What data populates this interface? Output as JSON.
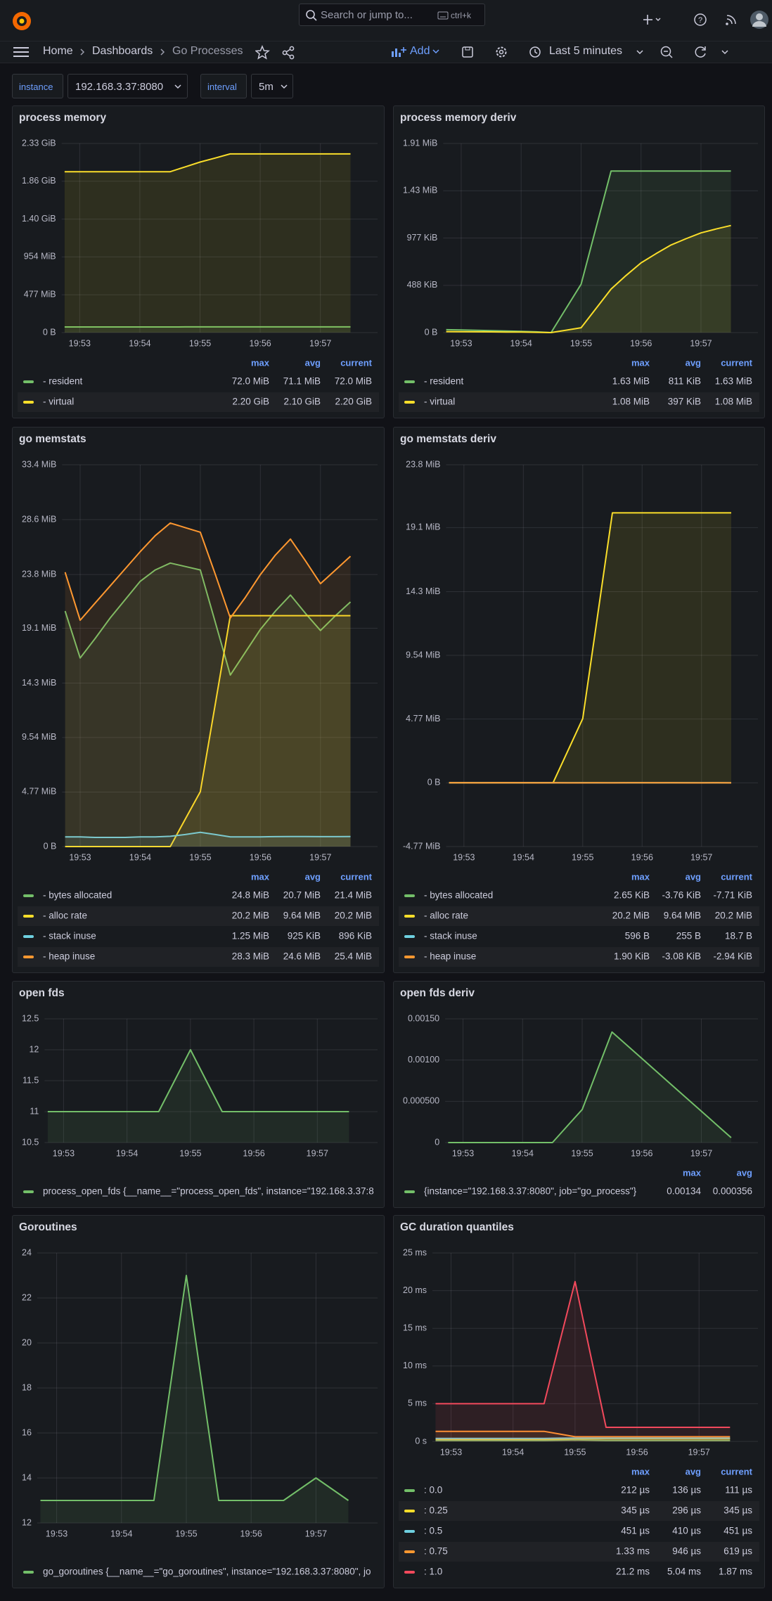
{
  "topbar": {
    "search_placeholder": "Search or jump to...",
    "shortcut": "ctrl+k"
  },
  "navbar": {
    "breadcrumbs": [
      "Home",
      "Dashboards",
      "Go Processes"
    ],
    "add": "Add",
    "time_range": "Last 5 minutes"
  },
  "variables": [
    {
      "label": "instance",
      "value": "192.168.3.37:8080"
    },
    {
      "label": "interval",
      "value": "5m"
    }
  ],
  "panels": [
    {
      "type": "line",
      "title": "process memory",
      "categories": [
        null,
        "19:53",
        null,
        null,
        null,
        "19:54",
        null,
        null,
        null,
        "19:55",
        null,
        null,
        null,
        "19:56",
        null,
        null,
        null,
        "19:57",
        null,
        null
      ],
      "ylim": [
        0,
        2385
      ],
      "yticks": [
        {
          "value": 0,
          "label": "0 B"
        },
        {
          "value": 477,
          "label": "477 MiB"
        },
        {
          "value": 954,
          "label": "954 MiB"
        },
        {
          "value": 1431,
          "label": "1.40 GiB"
        },
        {
          "value": 1908,
          "label": "1.86 GiB"
        },
        {
          "value": 2385,
          "label": "2.33 GiB"
        }
      ],
      "legend_columns": [
        "max",
        "avg",
        "current"
      ],
      "series": [
        {
          "name": "- resident",
          "color": "#73bf69",
          "values": [
            71,
            71,
            71,
            71,
            71,
            71,
            71,
            71,
            72,
            72,
            72,
            72,
            72,
            72,
            72,
            72,
            72,
            72,
            72,
            72
          ],
          "stats": [
            "72.0 MiB",
            "71.1 MiB",
            "72.0 MiB"
          ]
        },
        {
          "name": "- virtual",
          "color": "#fade2a",
          "values": [
            2028,
            2028,
            2028,
            2028,
            2028,
            2028,
            2028,
            2028,
            2089,
            2150,
            2201,
            2253,
            2253,
            2253,
            2253,
            2253,
            2253,
            2253,
            2253,
            2253
          ],
          "stats": [
            "2.20 GiB",
            "2.10 GiB",
            "2.20 GiB"
          ]
        }
      ]
    },
    {
      "type": "line",
      "title": "process memory deriv",
      "categories": [
        null,
        "19:53",
        null,
        null,
        null,
        "19:54",
        null,
        null,
        null,
        "19:55",
        null,
        null,
        null,
        "19:56",
        null,
        null,
        null,
        "19:57",
        null,
        null
      ],
      "ylim": [
        0,
        1954
      ],
      "yticks": [
        {
          "value": 0,
          "label": "0 B"
        },
        {
          "value": 488,
          "label": "488 KiB"
        },
        {
          "value": 977,
          "label": "977 KiB"
        },
        {
          "value": 1465,
          "label": "1.43 MiB"
        },
        {
          "value": 1954,
          "label": "1.91 MiB"
        }
      ],
      "legend_columns": [
        "max",
        "avg",
        "current"
      ],
      "series": [
        {
          "name": "- resident",
          "color": "#73bf69",
          "values": [
            30,
            27,
            24,
            20,
            16,
            12,
            8,
            0,
            250,
            500,
            1085,
            1669,
            1669,
            1669,
            1669,
            1669,
            1669,
            1669,
            1669,
            1669
          ],
          "stats": [
            "1.63 MiB",
            "811 KiB",
            "1.63 MiB"
          ]
        },
        {
          "name": "- virtual",
          "color": "#fade2a",
          "values": [
            10,
            9,
            8,
            7,
            6,
            5,
            3,
            0,
            25,
            50,
            250,
            450,
            590,
            720,
            815,
            905,
            970,
            1030,
            1070,
            1106
          ],
          "stats": [
            "1.08 MiB",
            "397 KiB",
            "1.08 MiB"
          ]
        }
      ]
    },
    {
      "type": "line",
      "title": "go memstats",
      "categories": [
        null,
        "19:53",
        null,
        null,
        null,
        "19:54",
        null,
        null,
        null,
        "19:55",
        null,
        null,
        null,
        "19:56",
        null,
        null,
        null,
        "19:57",
        null,
        null
      ],
      "ylim": [
        0,
        33.4
      ],
      "yticks": [
        {
          "value": 0,
          "label": "0 B"
        },
        {
          "value": 4.77,
          "label": "4.77 MiB"
        },
        {
          "value": 9.54,
          "label": "9.54 MiB"
        },
        {
          "value": 14.3,
          "label": "14.3 MiB"
        },
        {
          "value": 19.1,
          "label": "19.1 MiB"
        },
        {
          "value": 23.8,
          "label": "23.8 MiB"
        },
        {
          "value": 28.6,
          "label": "28.6 MiB"
        },
        {
          "value": 33.4,
          "label": "33.4 MiB"
        }
      ],
      "legend_columns": [
        "max",
        "avg",
        "current"
      ],
      "series": [
        {
          "name": "- bytes allocated",
          "color": "#73bf69",
          "values": [
            20.6,
            16.5,
            18.2,
            20,
            21.6,
            23.2,
            24.2,
            24.8,
            24.5,
            24.2,
            19.6,
            15,
            17,
            19,
            20.6,
            22,
            20.4,
            18.9,
            20.2,
            21.4
          ],
          "stats": [
            "24.8 MiB",
            "20.7 MiB",
            "21.4 MiB"
          ]
        },
        {
          "name": "- alloc rate",
          "color": "#fade2a",
          "values": [
            0,
            0,
            0,
            0,
            0,
            0,
            0,
            0,
            2.4,
            4.8,
            12.5,
            20.2,
            20.2,
            20.2,
            20.2,
            20.2,
            20.2,
            20.2,
            20.2,
            20.2
          ],
          "stats": [
            "20.2 MiB",
            "9.64 MiB",
            "20.2 MiB"
          ]
        },
        {
          "name": "- stack inuse",
          "color": "#6ed0e0",
          "values": [
            0.85,
            0.85,
            0.8,
            0.8,
            0.8,
            0.85,
            0.85,
            0.9,
            1.05,
            1.25,
            1.05,
            0.85,
            0.85,
            0.85,
            0.87,
            0.88,
            0.88,
            0.87,
            0.87,
            0.875
          ],
          "stats": [
            "1.25 MiB",
            "925 KiB",
            "896 KiB"
          ]
        },
        {
          "name": "- heap inuse",
          "color": "#ff9830",
          "values": [
            24,
            19.8,
            21.3,
            22.8,
            24.3,
            25.8,
            27.2,
            28.3,
            27.9,
            27.5,
            23.8,
            20,
            21.8,
            23.8,
            25.5,
            26.9,
            25,
            23,
            24.2,
            25.4
          ],
          "stats": [
            "28.3 MiB",
            "24.6 MiB",
            "25.4 MiB"
          ]
        }
      ]
    },
    {
      "type": "line",
      "title": "go memstats deriv",
      "categories": [
        null,
        "19:53",
        null,
        null,
        null,
        "19:54",
        null,
        null,
        null,
        "19:55",
        null,
        null,
        null,
        "19:56",
        null,
        null,
        null,
        "19:57",
        null,
        null
      ],
      "ylim": [
        -4.77,
        23.8
      ],
      "yticks": [
        {
          "value": -4.77,
          "label": "-4.77 MiB"
        },
        {
          "value": 0,
          "label": "0 B"
        },
        {
          "value": 4.77,
          "label": "4.77 MiB"
        },
        {
          "value": 9.54,
          "label": "9.54 MiB"
        },
        {
          "value": 14.3,
          "label": "14.3 MiB"
        },
        {
          "value": 19.1,
          "label": "19.1 MiB"
        },
        {
          "value": 23.8,
          "label": "23.8 MiB"
        }
      ],
      "legend_columns": [
        "max",
        "avg",
        "current"
      ],
      "series": [
        {
          "name": "- bytes allocated",
          "color": "#73bf69",
          "values": [
            0,
            0.001,
            -0.001,
            0.002,
            0.001,
            -0.002,
            0.001,
            0.002,
            -0.003,
            0.001,
            0.0026,
            -0.004,
            0.002,
            0.001,
            -0.002,
            0.002,
            0.001,
            -0.003,
            0.002,
            -0.0075
          ],
          "stats": [
            "2.65 KiB",
            "-3.76 KiB",
            "-7.71 KiB"
          ]
        },
        {
          "name": "- alloc rate",
          "color": "#fade2a",
          "values": [
            0,
            0,
            0,
            0,
            0,
            0,
            0,
            0,
            2.4,
            4.8,
            12.5,
            20.2,
            20.2,
            20.2,
            20.2,
            20.2,
            20.2,
            20.2,
            20.2,
            20.2
          ],
          "stats": [
            "20.2 MiB",
            "9.64 MiB",
            "20.2 MiB"
          ]
        },
        {
          "name": "- stack inuse",
          "color": "#6ed0e0",
          "values": [
            0,
            0,
            0,
            0,
            0,
            0,
            0,
            0,
            0.0005,
            0.0006,
            -0.0005,
            0,
            0,
            0,
            0,
            0,
            0,
            0,
            0,
            2e-05
          ],
          "stats": [
            "596 B",
            "255 B",
            "18.7 B"
          ]
        },
        {
          "name": "- heap inuse",
          "color": "#ff9830",
          "values": [
            0,
            0.001,
            -0.001,
            0.001,
            0.001,
            0.0019,
            -0.001,
            0.001,
            -0.002,
            -0.001,
            0.0018,
            -0.0037,
            0.001,
            0.0018,
            0.0015,
            0.001,
            -0.0018,
            -0.0019,
            0.001,
            -0.0029
          ],
          "stats": [
            "1.90 KiB",
            "-3.08 KiB",
            "-2.94 KiB"
          ]
        }
      ]
    },
    {
      "type": "line",
      "title": "open fds",
      "categories": [
        null,
        "19:53",
        null,
        null,
        null,
        "19:54",
        null,
        null,
        null,
        "19:55",
        null,
        null,
        null,
        "19:56",
        null,
        null,
        null,
        "19:57",
        null,
        null
      ],
      "ylim": [
        10.5,
        12.5
      ],
      "yticks": [
        10.5,
        11,
        11.5,
        12,
        12.5
      ],
      "series": [
        {
          "name": "process_open_fds {__name__=\"process_open_fds\", instance=\"192.168.3.37:8",
          "color": "#73bf69",
          "values": [
            11,
            11,
            11,
            11,
            11,
            11,
            11,
            11,
            11.5,
            12,
            11.5,
            11,
            11,
            11,
            11,
            11,
            11,
            11,
            11,
            11
          ]
        }
      ]
    },
    {
      "type": "line",
      "title": "open fds deriv",
      "categories": [
        null,
        "19:53",
        null,
        null,
        null,
        "19:54",
        null,
        null,
        null,
        "19:55",
        null,
        null,
        null,
        "19:56",
        null,
        null,
        null,
        "19:57",
        null,
        null
      ],
      "ylim": [
        0,
        0.0015
      ],
      "yticks": [
        0,
        {
          "value": 0.0005,
          "label": "0.000500"
        },
        {
          "value": 0.001,
          "label": "0.00100"
        },
        {
          "value": 0.0015,
          "label": "0.00150"
        }
      ],
      "legend_columns": [
        "max",
        "avg"
      ],
      "series": [
        {
          "name": "{instance=\"192.168.3.37:8080\", job=\"go_process\"}",
          "color": "#73bf69",
          "values": [
            0,
            0,
            0,
            0,
            0,
            0,
            0,
            0,
            0.0002,
            0.0004,
            0.00087,
            0.00134,
            0.00118,
            0.00102,
            0.00086,
            0.0007,
            0.00054,
            0.00038,
            0.00022,
            6e-05
          ],
          "stats": [
            "0.00134",
            "0.000356"
          ]
        }
      ]
    },
    {
      "type": "line",
      "title": "Goroutines",
      "categories": [
        null,
        "19:53",
        null,
        null,
        null,
        "19:54",
        null,
        null,
        null,
        "19:55",
        null,
        null,
        null,
        "19:56",
        null,
        null,
        null,
        "19:57",
        null,
        null
      ],
      "ylim": [
        12,
        24
      ],
      "yticks": [
        12,
        14,
        16,
        18,
        20,
        22,
        24
      ],
      "series": [
        {
          "name": "go_goroutines {__name__=\"go_goroutines\", instance=\"192.168.3.37:8080\", jo",
          "color": "#73bf69",
          "values": [
            13,
            13,
            13,
            13,
            13,
            13,
            13,
            13,
            18,
            23,
            18,
            13,
            13,
            13,
            13,
            13,
            13.5,
            14,
            13.5,
            13
          ]
        }
      ]
    },
    {
      "type": "line",
      "title": "GC duration quantiles",
      "categories": [
        null,
        "19:53",
        null,
        null,
        null,
        "19:54",
        null,
        null,
        null,
        "19:55",
        null,
        null,
        null,
        "19:56",
        null,
        null,
        null,
        "19:57",
        null,
        null
      ],
      "ylim": [
        0,
        25
      ],
      "yticks": [
        {
          "value": 0,
          "label": "0 s"
        },
        {
          "value": 5,
          "label": "5 ms"
        },
        {
          "value": 10,
          "label": "10 ms"
        },
        {
          "value": 15,
          "label": "15 ms"
        },
        {
          "value": 20,
          "label": "20 ms"
        },
        {
          "value": 25,
          "label": "25 ms"
        }
      ],
      "legend_columns": [
        "max",
        "avg",
        "current"
      ],
      "series": [
        {
          "name": ": 0.0",
          "color": "#73bf69",
          "values": [
            0.11,
            0.11,
            0.11,
            0.11,
            0.11,
            0.11,
            0.11,
            0.11,
            0.16,
            0.212,
            0.16,
            0.111,
            0.111,
            0.111,
            0.111,
            0.111,
            0.111,
            0.111,
            0.111,
            0.111
          ],
          "stats": [
            "212 µs",
            "136 µs",
            "111 µs"
          ]
        },
        {
          "name": ": 0.25",
          "color": "#fade2a",
          "values": [
            0.28,
            0.28,
            0.28,
            0.28,
            0.28,
            0.28,
            0.28,
            0.28,
            0.31,
            0.345,
            0.345,
            0.345,
            0.345,
            0.345,
            0.345,
            0.345,
            0.345,
            0.345,
            0.345,
            0.345
          ],
          "stats": [
            "345 µs",
            "296 µs",
            "345 µs"
          ]
        },
        {
          "name": ": 0.5",
          "color": "#6ed0e0",
          "values": [
            0.4,
            0.4,
            0.4,
            0.4,
            0.4,
            0.4,
            0.4,
            0.4,
            0.43,
            0.451,
            0.451,
            0.451,
            0.451,
            0.451,
            0.451,
            0.451,
            0.451,
            0.451,
            0.451,
            0.451
          ],
          "stats": [
            "451 µs",
            "410 µs",
            "451 µs"
          ]
        },
        {
          "name": ": 0.75",
          "color": "#ff9830",
          "values": [
            1.33,
            1.33,
            1.33,
            1.33,
            1.33,
            1.33,
            1.33,
            1.33,
            0.98,
            0.62,
            0.62,
            0.619,
            0.619,
            0.619,
            0.619,
            0.619,
            0.619,
            0.619,
            0.619,
            0.619
          ],
          "stats": [
            "1.33 ms",
            "946 µs",
            "619 µs"
          ]
        },
        {
          "name": ": 1.0",
          "color": "#f2495c",
          "values": [
            5,
            5,
            5,
            5,
            5,
            5,
            5,
            5,
            13.1,
            21.2,
            11.5,
            1.87,
            1.87,
            1.87,
            1.87,
            1.87,
            1.87,
            1.87,
            1.87,
            1.87
          ],
          "stats": [
            "21.2 ms",
            "5.04 ms",
            "1.87 ms"
          ]
        }
      ]
    }
  ]
}
